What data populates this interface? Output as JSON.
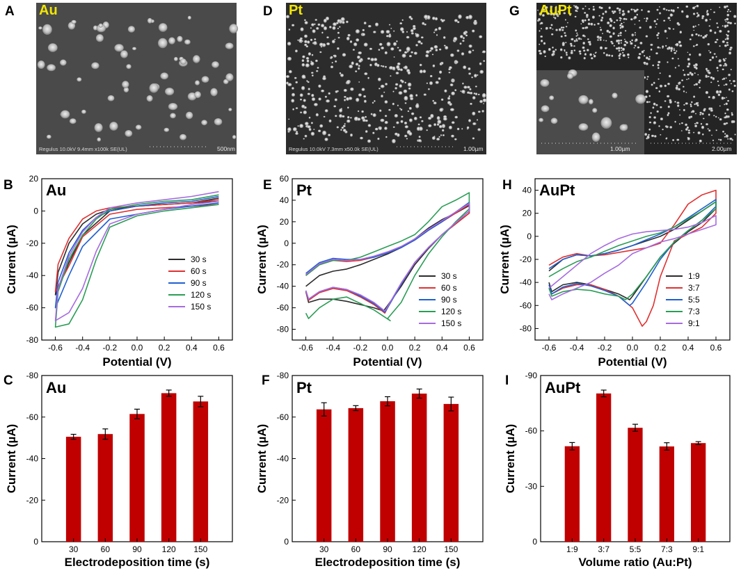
{
  "figure": {
    "panel_letters": [
      "A",
      "B",
      "C",
      "D",
      "E",
      "F",
      "G",
      "H",
      "I"
    ]
  },
  "sem_images": [
    {
      "label": "Au",
      "caption": "Regulus 10.0kV 9.4mm x100k SE(UL)",
      "scale_bar": "500nm",
      "inset_scale_bar": ""
    },
    {
      "label": "Pt",
      "caption": "Regulus 10.0kV 7.3mm x50.0k SE(UL)",
      "scale_bar": "1.00µm",
      "inset_scale_bar": ""
    },
    {
      "label": "AuPt",
      "caption": "",
      "scale_bar": "2.00µm",
      "inset_scale_bar": "1.00µm"
    }
  ],
  "chart_data": [
    {
      "id": "B",
      "type": "line",
      "title": "Au",
      "xlabel": "Potential (V)",
      "ylabel": "Current (µA)",
      "xlim": [
        -0.7,
        0.7
      ],
      "ylim": [
        -80,
        20
      ],
      "xticks": [
        -0.6,
        -0.4,
        -0.2,
        0.0,
        0.2,
        0.4,
        0.6
      ],
      "yticks": [
        20,
        0,
        -20,
        -40,
        -60,
        -80
      ],
      "legend": "center-right",
      "series": [
        {
          "name": "30 s",
          "color": "#2b2b2b",
          "x": [
            0.6,
            0.4,
            0.2,
            0.0,
            -0.2,
            -0.4,
            -0.5,
            -0.6,
            -0.58,
            -0.5,
            -0.4,
            -0.3,
            -0.2,
            0.0,
            0.2,
            0.4,
            0.6
          ],
          "y": [
            6,
            5,
            4,
            3,
            0,
            -15,
            -32,
            -52,
            -38,
            -20,
            -8,
            -2,
            1,
            3,
            4,
            5,
            8
          ]
        },
        {
          "name": "60 s",
          "color": "#e03030",
          "x": [
            0.6,
            0.4,
            0.2,
            0.0,
            -0.2,
            -0.4,
            -0.5,
            -0.6,
            -0.58,
            -0.5,
            -0.4,
            -0.3,
            -0.2,
            0.0,
            0.2,
            0.4,
            0.6
          ],
          "y": [
            4,
            3,
            2,
            1,
            -2,
            -16,
            -34,
            -50,
            -33,
            -17,
            -5,
            0,
            2,
            3,
            4,
            5,
            7
          ]
        },
        {
          "name": "90 s",
          "color": "#1f5fd0",
          "x": [
            0.6,
            0.4,
            0.2,
            0.0,
            -0.2,
            -0.4,
            -0.5,
            -0.6,
            -0.58,
            -0.5,
            -0.4,
            -0.3,
            -0.2,
            0.0,
            0.2,
            0.4,
            0.6
          ],
          "y": [
            5,
            3,
            1,
            -2,
            -5,
            -22,
            -40,
            -60,
            -44,
            -26,
            -12,
            -4,
            0,
            3,
            5,
            6,
            9
          ]
        },
        {
          "name": "120 s",
          "color": "#2a9d55",
          "x": [
            0.6,
            0.4,
            0.2,
            0.0,
            -0.2,
            -0.3,
            -0.4,
            -0.5,
            -0.6,
            -0.58,
            -0.5,
            -0.4,
            -0.3,
            -0.2,
            0.0,
            0.2,
            0.4,
            0.6
          ],
          "y": [
            4,
            2,
            0,
            -3,
            -10,
            -30,
            -55,
            -70,
            -72,
            -50,
            -30,
            -15,
            -5,
            1,
            4,
            6,
            7,
            10
          ]
        },
        {
          "name": "150 s",
          "color": "#a66be0",
          "x": [
            0.6,
            0.4,
            0.2,
            0.0,
            -0.2,
            -0.3,
            -0.4,
            -0.5,
            -0.6,
            -0.58,
            -0.5,
            -0.4,
            -0.3,
            -0.2,
            0.0,
            0.2,
            0.4,
            0.6
          ],
          "y": [
            6,
            4,
            1,
            -2,
            -8,
            -25,
            -48,
            -63,
            -68,
            -48,
            -28,
            -13,
            -4,
            2,
            5,
            7,
            9,
            12
          ]
        }
      ]
    },
    {
      "id": "E",
      "type": "line",
      "title": "Pt",
      "xlabel": "Potential (V)",
      "ylabel": "Current (µA)",
      "xlim": [
        -0.7,
        0.7
      ],
      "ylim": [
        -90,
        60
      ],
      "xticks": [
        -0.6,
        -0.4,
        -0.2,
        0.0,
        0.2,
        0.4,
        0.6
      ],
      "yticks": [
        60,
        40,
        20,
        0,
        -20,
        -40,
        -60,
        -80
      ],
      "legend": "bottom-right",
      "series": [
        {
          "name": "30 s",
          "color": "#2b2b2b",
          "x": [
            -0.6,
            -0.5,
            -0.4,
            -0.3,
            -0.2,
            -0.1,
            0.0,
            0.1,
            0.2,
            0.3,
            0.4,
            0.5,
            0.6,
            0.6,
            0.5,
            0.4,
            0.3,
            0.2,
            0.1,
            0.0,
            -0.03,
            -0.1,
            -0.2,
            -0.3,
            -0.4,
            -0.5,
            -0.58,
            -0.6
          ],
          "y": [
            -40,
            -30,
            -26,
            -24,
            -20,
            -15,
            -10,
            -4,
            4,
            14,
            22,
            28,
            35,
            28,
            18,
            8,
            -5,
            -20,
            -40,
            -58,
            -63,
            -60,
            -57,
            -54,
            -52,
            -52,
            -55,
            -45
          ]
        },
        {
          "name": "60 s",
          "color": "#e03030",
          "x": [
            -0.6,
            -0.5,
            -0.4,
            -0.3,
            -0.2,
            -0.1,
            0.0,
            0.1,
            0.2,
            0.3,
            0.4,
            0.5,
            0.6,
            0.6,
            0.5,
            0.4,
            0.3,
            0.2,
            0.1,
            0.0,
            -0.02,
            -0.1,
            -0.2,
            -0.3,
            -0.4,
            -0.5,
            -0.58,
            -0.6
          ],
          "y": [
            -30,
            -20,
            -16,
            -17,
            -16,
            -13,
            -9,
            -4,
            3,
            12,
            20,
            28,
            36,
            28,
            18,
            8,
            -4,
            -18,
            -38,
            -60,
            -65,
            -57,
            -50,
            -44,
            -42,
            -46,
            -53,
            -45
          ]
        },
        {
          "name": "90 s",
          "color": "#1f5fd0",
          "x": [
            -0.6,
            -0.5,
            -0.4,
            -0.3,
            -0.2,
            -0.1,
            0.0,
            0.1,
            0.2,
            0.3,
            0.4,
            0.5,
            0.6,
            0.6,
            0.5,
            0.4,
            0.3,
            0.2,
            0.1,
            0.0,
            -0.02,
            -0.1,
            -0.2,
            -0.3,
            -0.4,
            -0.5,
            -0.58,
            -0.6
          ],
          "y": [
            -28,
            -18,
            -14,
            -15,
            -15,
            -13,
            -9,
            -4,
            3,
            12,
            20,
            29,
            38,
            30,
            19,
            8,
            -4,
            -18,
            -38,
            -60,
            -64,
            -56,
            -49,
            -43,
            -41,
            -45,
            -52,
            -44
          ]
        },
        {
          "name": "120 s",
          "color": "#2a9d55",
          "x": [
            -0.6,
            -0.5,
            -0.4,
            -0.3,
            -0.2,
            -0.1,
            0.0,
            0.1,
            0.2,
            0.3,
            0.4,
            0.5,
            0.6,
            0.6,
            0.5,
            0.4,
            0.3,
            0.2,
            0.1,
            0.0,
            0.02,
            -0.1,
            -0.2,
            -0.3,
            -0.4,
            -0.5,
            -0.58,
            -0.6
          ],
          "y": [
            -30,
            -20,
            -16,
            -16,
            -13,
            -8,
            -3,
            2,
            8,
            20,
            34,
            40,
            47,
            32,
            20,
            6,
            -10,
            -30,
            -55,
            -70,
            -72,
            -62,
            -56,
            -50,
            -52,
            -60,
            -70,
            -65
          ]
        },
        {
          "name": "150 s",
          "color": "#a66be0",
          "x": [
            -0.6,
            -0.5,
            -0.4,
            -0.3,
            -0.2,
            -0.1,
            0.0,
            0.1,
            0.2,
            0.3,
            0.4,
            0.5,
            0.6,
            0.6,
            0.5,
            0.4,
            0.3,
            0.2,
            0.1,
            0.0,
            -0.02,
            -0.1,
            -0.2,
            -0.3,
            -0.4,
            -0.5,
            -0.58,
            -0.6
          ],
          "y": [
            -29,
            -19,
            -15,
            -16,
            -15,
            -12,
            -8,
            -3,
            4,
            13,
            21,
            29,
            37,
            30,
            19,
            8,
            -4,
            -18,
            -37,
            -59,
            -63,
            -55,
            -48,
            -43,
            -41,
            -45,
            -52,
            -44
          ]
        }
      ]
    },
    {
      "id": "H",
      "type": "line",
      "title": "AuPt",
      "xlabel": "Potential (V)",
      "ylabel": "Current (µA)",
      "xlim": [
        -0.7,
        0.7
      ],
      "ylim": [
        -90,
        50
      ],
      "xticks": [
        -0.6,
        -0.4,
        -0.2,
        0.0,
        0.2,
        0.4,
        0.6
      ],
      "yticks": [
        40,
        20,
        0,
        -20,
        -40,
        -60,
        -80
      ],
      "legend": "bottom-right",
      "series": [
        {
          "name": "1:9",
          "color": "#2b2b2b",
          "x": [
            -0.6,
            -0.5,
            -0.4,
            -0.3,
            -0.2,
            -0.1,
            0.0,
            0.1,
            0.2,
            0.3,
            0.4,
            0.5,
            0.6,
            0.6,
            0.5,
            0.4,
            0.3,
            0.2,
            0.1,
            0.0,
            -0.02,
            -0.1,
            -0.2,
            -0.3,
            -0.4,
            -0.5,
            -0.58,
            -0.6
          ],
          "y": [
            -30,
            -20,
            -16,
            -17,
            -15,
            -12,
            -8,
            -4,
            0,
            6,
            14,
            22,
            30,
            24,
            12,
            4,
            -6,
            -18,
            -35,
            -52,
            -55,
            -50,
            -46,
            -42,
            -40,
            -42,
            -48,
            -40
          ]
        },
        {
          "name": "3:7",
          "color": "#e03030",
          "x": [
            -0.6,
            -0.5,
            -0.4,
            -0.3,
            -0.2,
            -0.1,
            0.0,
            0.1,
            0.2,
            0.3,
            0.4,
            0.5,
            0.6,
            0.6,
            0.5,
            0.4,
            0.3,
            0.2,
            0.15,
            0.1,
            0.07,
            0.0,
            -0.1,
            -0.2,
            -0.3,
            -0.4,
            -0.5,
            -0.58,
            -0.6
          ],
          "y": [
            -25,
            -18,
            -15,
            -17,
            -16,
            -14,
            -12,
            -10,
            -6,
            10,
            28,
            36,
            40,
            20,
            8,
            2,
            -4,
            -35,
            -60,
            -74,
            -78,
            -62,
            -52,
            -46,
            -42,
            -42,
            -45,
            -50,
            -45
          ]
        },
        {
          "name": "5:5",
          "color": "#1f5fd0",
          "x": [
            -0.6,
            -0.5,
            -0.4,
            -0.3,
            -0.2,
            -0.1,
            0.0,
            0.1,
            0.2,
            0.3,
            0.4,
            0.5,
            0.6,
            0.6,
            0.5,
            0.4,
            0.3,
            0.2,
            0.1,
            0.0,
            -0.02,
            -0.1,
            -0.2,
            -0.3,
            -0.4,
            -0.5,
            -0.58,
            -0.6
          ],
          "y": [
            -28,
            -20,
            -16,
            -17,
            -15,
            -12,
            -8,
            -3,
            2,
            8,
            16,
            24,
            32,
            26,
            14,
            5,
            -5,
            -20,
            -40,
            -58,
            -60,
            -52,
            -47,
            -43,
            -41,
            -44,
            -50,
            -42
          ]
        },
        {
          "name": "7:3",
          "color": "#2a9d55",
          "x": [
            -0.6,
            -0.5,
            -0.4,
            -0.3,
            -0.2,
            -0.1,
            0.0,
            0.1,
            0.2,
            0.3,
            0.4,
            0.5,
            0.6,
            0.6,
            0.5,
            0.4,
            0.3,
            0.2,
            0.1,
            0.0,
            -0.05,
            -0.1,
            -0.2,
            -0.3,
            -0.4,
            -0.5,
            -0.58,
            -0.6
          ],
          "y": [
            -35,
            -28,
            -22,
            -18,
            -13,
            -8,
            -4,
            0,
            3,
            8,
            15,
            22,
            30,
            24,
            14,
            5,
            -5,
            -18,
            -35,
            -50,
            -55,
            -52,
            -50,
            -47,
            -46,
            -48,
            -52,
            -45
          ]
        },
        {
          "name": "9:1",
          "color": "#a66be0",
          "x": [
            -0.6,
            -0.5,
            -0.4,
            -0.3,
            -0.2,
            -0.1,
            0.0,
            0.1,
            0.2,
            0.3,
            0.4,
            0.5,
            0.6,
            0.6,
            0.5,
            0.4,
            0.3,
            0.2,
            0.1,
            0.0,
            -0.1,
            -0.2,
            -0.3,
            -0.4,
            -0.5,
            -0.58,
            -0.6
          ],
          "y": [
            -45,
            -35,
            -25,
            -15,
            -8,
            -2,
            2,
            4,
            5,
            6,
            8,
            12,
            18,
            10,
            6,
            2,
            -2,
            -5,
            -10,
            -15,
            -25,
            -32,
            -40,
            -45,
            -50,
            -55,
            -50
          ]
        }
      ]
    },
    {
      "id": "C",
      "type": "bar",
      "title": "Au",
      "xlabel": "Electrodeposition time (s)",
      "ylabel": "Current (µA)",
      "categories": [
        "30",
        "60",
        "90",
        "120",
        "150"
      ],
      "values": [
        -50.5,
        -51.8,
        -61.5,
        -71.5,
        -67.5
      ],
      "errors": [
        1.2,
        2.5,
        2.3,
        1.5,
        2.5
      ],
      "ylim": [
        0,
        -80
      ],
      "yticks": [
        0,
        -20,
        -40,
        -60,
        -80
      ],
      "ytick_labels": [
        "0",
        "-20",
        "-40",
        "-60",
        "-80"
      ],
      "color": "#c00000"
    },
    {
      "id": "F",
      "type": "bar",
      "title": "Pt",
      "xlabel": "Electrodeposition time (s)",
      "ylabel": "Current (µA)",
      "categories": [
        "30",
        "60",
        "90",
        "120",
        "150"
      ],
      "values": [
        -63.7,
        -64.3,
        -67.6,
        -71.3,
        -66.3
      ],
      "errors": [
        3.2,
        1.2,
        2.2,
        2.2,
        3.3
      ],
      "ylim": [
        0,
        -80
      ],
      "yticks": [
        0,
        -20,
        -40,
        -60,
        -80
      ],
      "ytick_labels": [
        "0",
        "-20",
        "-40",
        "-60",
        "-80"
      ],
      "color": "#c00000"
    },
    {
      "id": "I",
      "type": "bar",
      "title": "AuPt",
      "xlabel": "Volume ratio (Au:Pt)",
      "ylabel": "Current (µA)",
      "categories": [
        "1:9",
        "3:7",
        "5:5",
        "7:3",
        "9:1"
      ],
      "values": [
        -51.7,
        -80.3,
        -61.7,
        -51.6,
        -53.4
      ],
      "errors": [
        2.0,
        1.8,
        1.9,
        2.0,
        0.8
      ],
      "ylim": [
        0,
        -90
      ],
      "yticks": [
        0,
        -30,
        -60,
        -90
      ],
      "ytick_labels": [
        "0",
        "-30",
        "-60",
        "-90"
      ],
      "color": "#c00000"
    }
  ]
}
